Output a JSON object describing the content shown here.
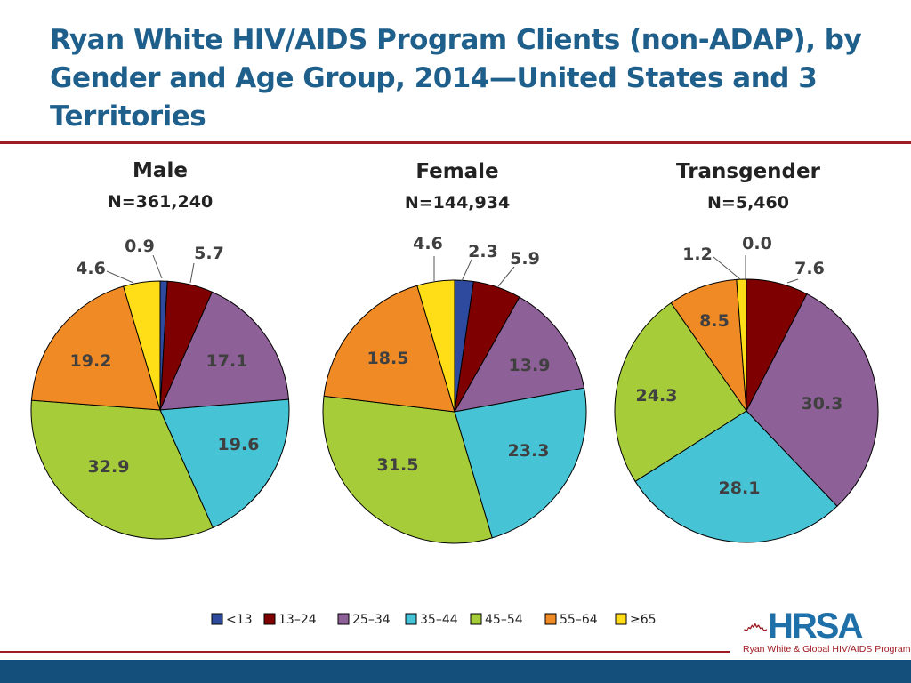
{
  "title": "Ryan White HIV/AIDS Program Clients (non-ADAP), by Gender and Age Group, 2014—United States and 3 Territories",
  "logo": {
    "text": "HRSA",
    "subtitle": "Ryan White & Global HIV/AIDS Programs"
  },
  "chart_data": [
    {
      "type": "pie",
      "title": "Male",
      "subtitle": "N=361,240",
      "categories": [
        "<13",
        "13–24",
        "25–34",
        "35–44",
        "45–54",
        "55–64",
        "≥65"
      ],
      "values": [
        0.9,
        5.7,
        17.1,
        19.6,
        32.9,
        19.2,
        4.6
      ],
      "legend": "bottom"
    },
    {
      "type": "pie",
      "title": "Female",
      "subtitle": "N=144,934",
      "categories": [
        "<13",
        "13–24",
        "25–34",
        "35–44",
        "45–54",
        "55–64",
        "≥65"
      ],
      "values": [
        2.3,
        5.9,
        13.9,
        23.3,
        31.5,
        18.5,
        4.6
      ],
      "legend": "bottom"
    },
    {
      "type": "pie",
      "title": "Transgender",
      "subtitle": "N=5,460",
      "categories": [
        "<13",
        "13–24",
        "25–34",
        "35–44",
        "45–54",
        "55–64",
        "≥65"
      ],
      "values": [
        0.0,
        7.6,
        30.3,
        28.1,
        24.3,
        8.5,
        1.2
      ],
      "legend": "bottom"
    }
  ],
  "colors": [
    "#2E4A9E",
    "#7F0000",
    "#8E6098",
    "#46C3D5",
    "#A6CC3A",
    "#F08A24",
    "#FFDE17"
  ],
  "legend": [
    "<13",
    "13–24",
    "25–34",
    "35–44",
    "45–54",
    "55–64",
    "≥65"
  ]
}
